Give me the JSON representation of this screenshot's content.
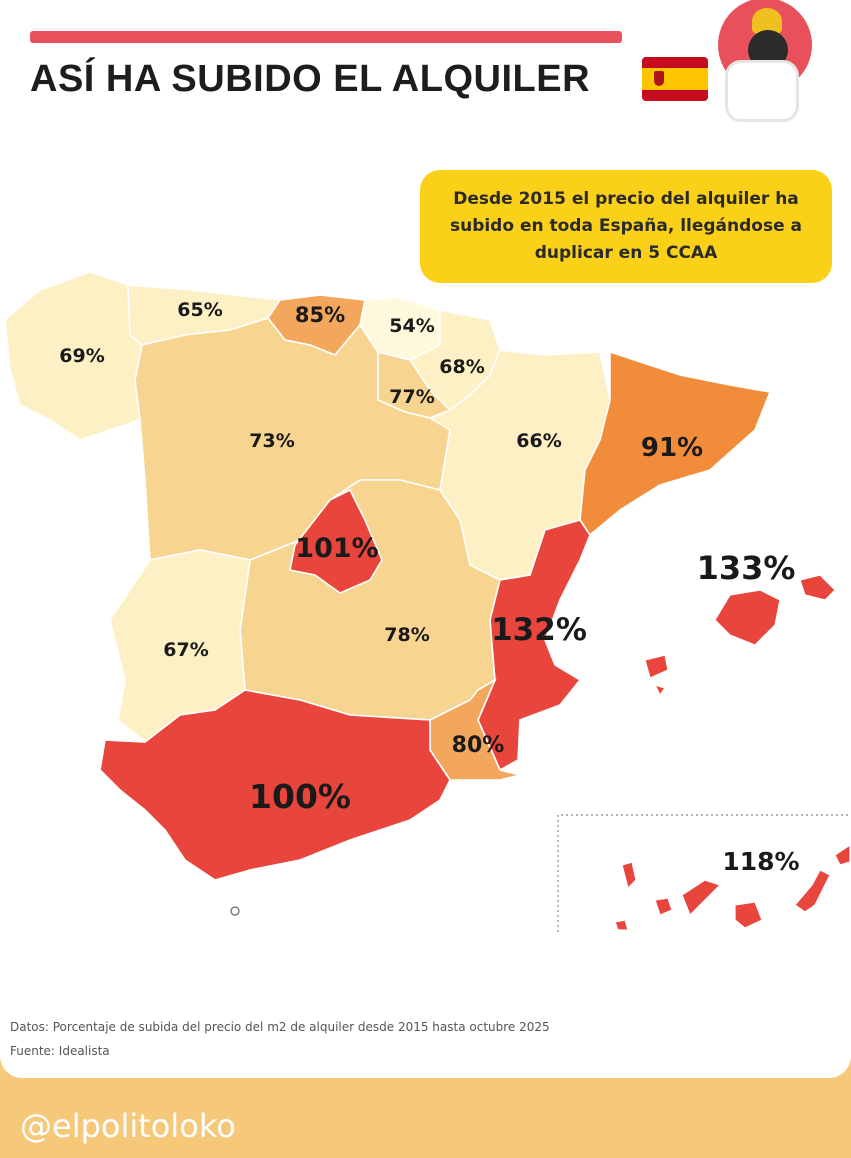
{
  "header": {
    "title": "ASÍ HA SUBIDO EL ALQUILER"
  },
  "callout": {
    "text": "Desde 2015 el precio del alquiler ha subido en toda España, llegándose a duplicar en 5 CCAA"
  },
  "map": {
    "regions": [
      {
        "id": "galicia",
        "label": "69%",
        "value": 69,
        "color": "#fdf0c4"
      },
      {
        "id": "asturias",
        "label": "65%",
        "value": 65,
        "color": "#fdf0c4"
      },
      {
        "id": "cantabria",
        "label": "85%",
        "value": 85,
        "color": "#f3a75c"
      },
      {
        "id": "pais-vasco",
        "label": "54%",
        "value": 54,
        "color": "#fff8dc"
      },
      {
        "id": "navarra",
        "label": "68%",
        "value": 68,
        "color": "#fdf0c4"
      },
      {
        "id": "la-rioja",
        "label": "77%",
        "value": 77,
        "color": "#f7d591"
      },
      {
        "id": "castilla-y-leon",
        "label": "73%",
        "value": 73,
        "color": "#f7d591"
      },
      {
        "id": "aragon",
        "label": "66%",
        "value": 66,
        "color": "#fdf0c4"
      },
      {
        "id": "cataluna",
        "label": "91%",
        "value": 91,
        "color": "#f08c3a"
      },
      {
        "id": "madrid",
        "label": "101%",
        "value": 101,
        "color": "#e8453c"
      },
      {
        "id": "castilla-la-mancha",
        "label": "78%",
        "value": 78,
        "color": "#f7d591"
      },
      {
        "id": "extremadura",
        "label": "67%",
        "value": 67,
        "color": "#fdf0c4"
      },
      {
        "id": "comunidad-valenciana",
        "label": "132%",
        "value": 132,
        "color": "#e8453c"
      },
      {
        "id": "murcia",
        "label": "80%",
        "value": 80,
        "color": "#f3a75c"
      },
      {
        "id": "andalucia",
        "label": "100%",
        "value": 100,
        "color": "#e8453c"
      },
      {
        "id": "islas-baleares",
        "label": "133%",
        "value": 133,
        "color": "#e8453c"
      },
      {
        "id": "canarias",
        "label": "118%",
        "value": 118,
        "color": "#e8453c"
      }
    ]
  },
  "footer": {
    "datos": "Datos: Porcentaje de subida del precio del m2 de alquiler desde 2015 hasta octubre 2025",
    "fuente": "Fuente: Idealista",
    "handle": "@elpolitoloko"
  }
}
